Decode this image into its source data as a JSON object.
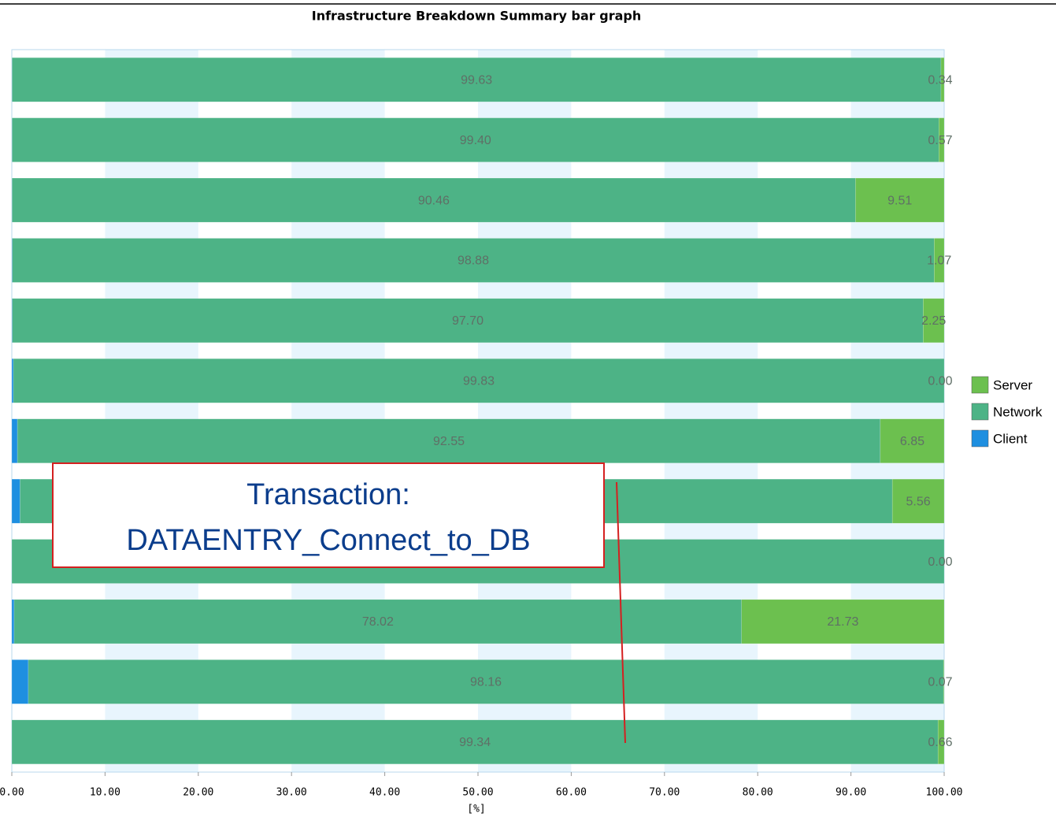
{
  "chart_data": {
    "type": "stacked-barh",
    "title": "Infrastructure Breakdown Summary bar graph",
    "xlabel": "[%]",
    "categories": [
      null,
      null,
      null,
      null,
      null,
      null,
      null,
      null,
      null,
      null,
      null,
      null
    ],
    "series": [
      {
        "name": "Client",
        "color": "#1e8fe0",
        "values": [
          0.03,
          0.03,
          0.03,
          0.05,
          0.05,
          0.17,
          0.6,
          0.88,
          0,
          0.25,
          1.77,
          0
        ]
      },
      {
        "name": "Network",
        "color": "#4db386",
        "values": [
          99.63,
          99.4,
          90.46,
          98.88,
          97.7,
          99.83,
          92.55,
          93.56,
          100,
          78.02,
          98.16,
          99.34
        ],
        "value_labels": [
          "99.63",
          "99.40",
          "90.46",
          "98.88",
          "97.70",
          "99.83",
          "92.55",
          null,
          null,
          "78.02",
          "98.16",
          "99.34"
        ]
      },
      {
        "name": "Server",
        "color": "#6cc04f",
        "values": [
          0.34,
          0.57,
          9.51,
          1.07,
          2.25,
          0,
          6.85,
          5.56,
          0,
          21.73,
          0.07,
          0.66
        ],
        "value_labels": [
          "0.34",
          "0.57",
          "9.51",
          "1.07",
          "2.25",
          "0.00",
          "6.85",
          "5.56",
          "0.00",
          "21.73",
          "0.07",
          "0.66"
        ]
      }
    ],
    "xlim": [
      0,
      100
    ],
    "xticks": [
      {
        "value": 0,
        "label": "0.00"
      },
      {
        "value": 10,
        "label": "10.00"
      },
      {
        "value": 20,
        "label": "20.00"
      },
      {
        "value": 30,
        "label": "30.00"
      },
      {
        "value": 40,
        "label": "40.00"
      },
      {
        "value": 50,
        "label": "50.00"
      },
      {
        "value": 60,
        "label": "60.00"
      },
      {
        "value": 70,
        "label": "70.00"
      },
      {
        "value": 80,
        "label": "80.00"
      },
      {
        "value": 90,
        "label": "90.00"
      },
      {
        "value": 100,
        "label": "100.00"
      }
    ],
    "grid": true,
    "legend": "right",
    "annotation": [
      "Transaction:",
      "DATAENTRY_Connect_to_DB"
    ]
  }
}
